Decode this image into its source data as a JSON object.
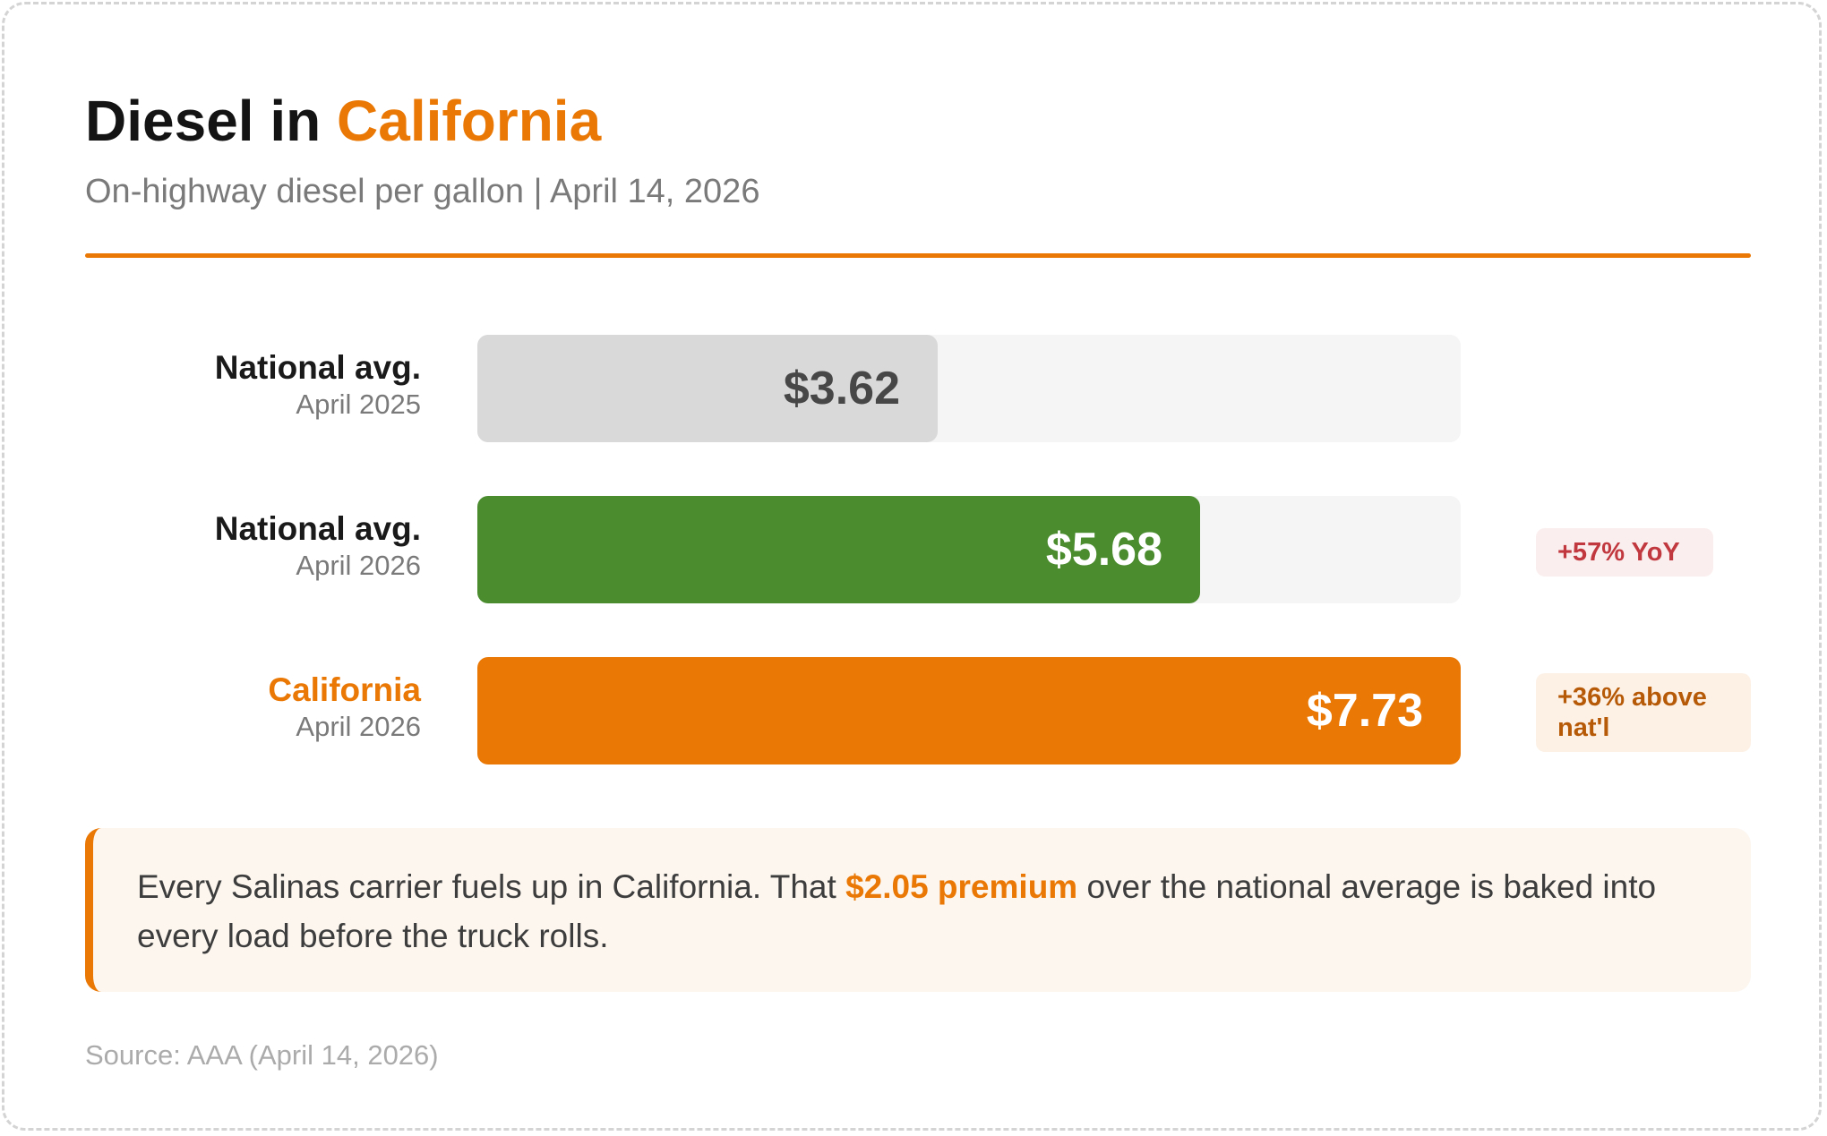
{
  "colors": {
    "accent": "#ea7804",
    "prior_bar": "#d9d9d9",
    "national_bar": "#4a8c2e",
    "california_bar": "#ea7804",
    "track": "#f5f5f5",
    "badge_yoy": "#c1393f",
    "badge_above": "#b75a08"
  },
  "header": {
    "title_prefix": "Diesel in ",
    "title_highlight": "California",
    "subtitle": "On-highway diesel per gallon | April 14, 2026"
  },
  "chart_data": {
    "type": "bar",
    "orientation": "horizontal",
    "xlim": [
      0,
      7.73
    ],
    "rows": [
      {
        "label": "National avg.",
        "sublabel": "April 2025",
        "value": 3.62,
        "value_label": "$3.62",
        "badge": ""
      },
      {
        "label": "National avg.",
        "sublabel": "April 2026",
        "value": 5.68,
        "value_label": "$5.68",
        "badge": "+57% YoY"
      },
      {
        "label": "California",
        "sublabel": "April 2026",
        "value": 7.73,
        "value_label": "$7.73",
        "badge": "+36% above nat'l"
      }
    ]
  },
  "callout": {
    "text_before": "Every Salinas carrier fuels up in California. That ",
    "highlight": "$2.05 premium",
    "text_after": " over the national average is baked into every load before the truck rolls."
  },
  "footer": {
    "source": "Source: AAA (April 14, 2026)"
  }
}
